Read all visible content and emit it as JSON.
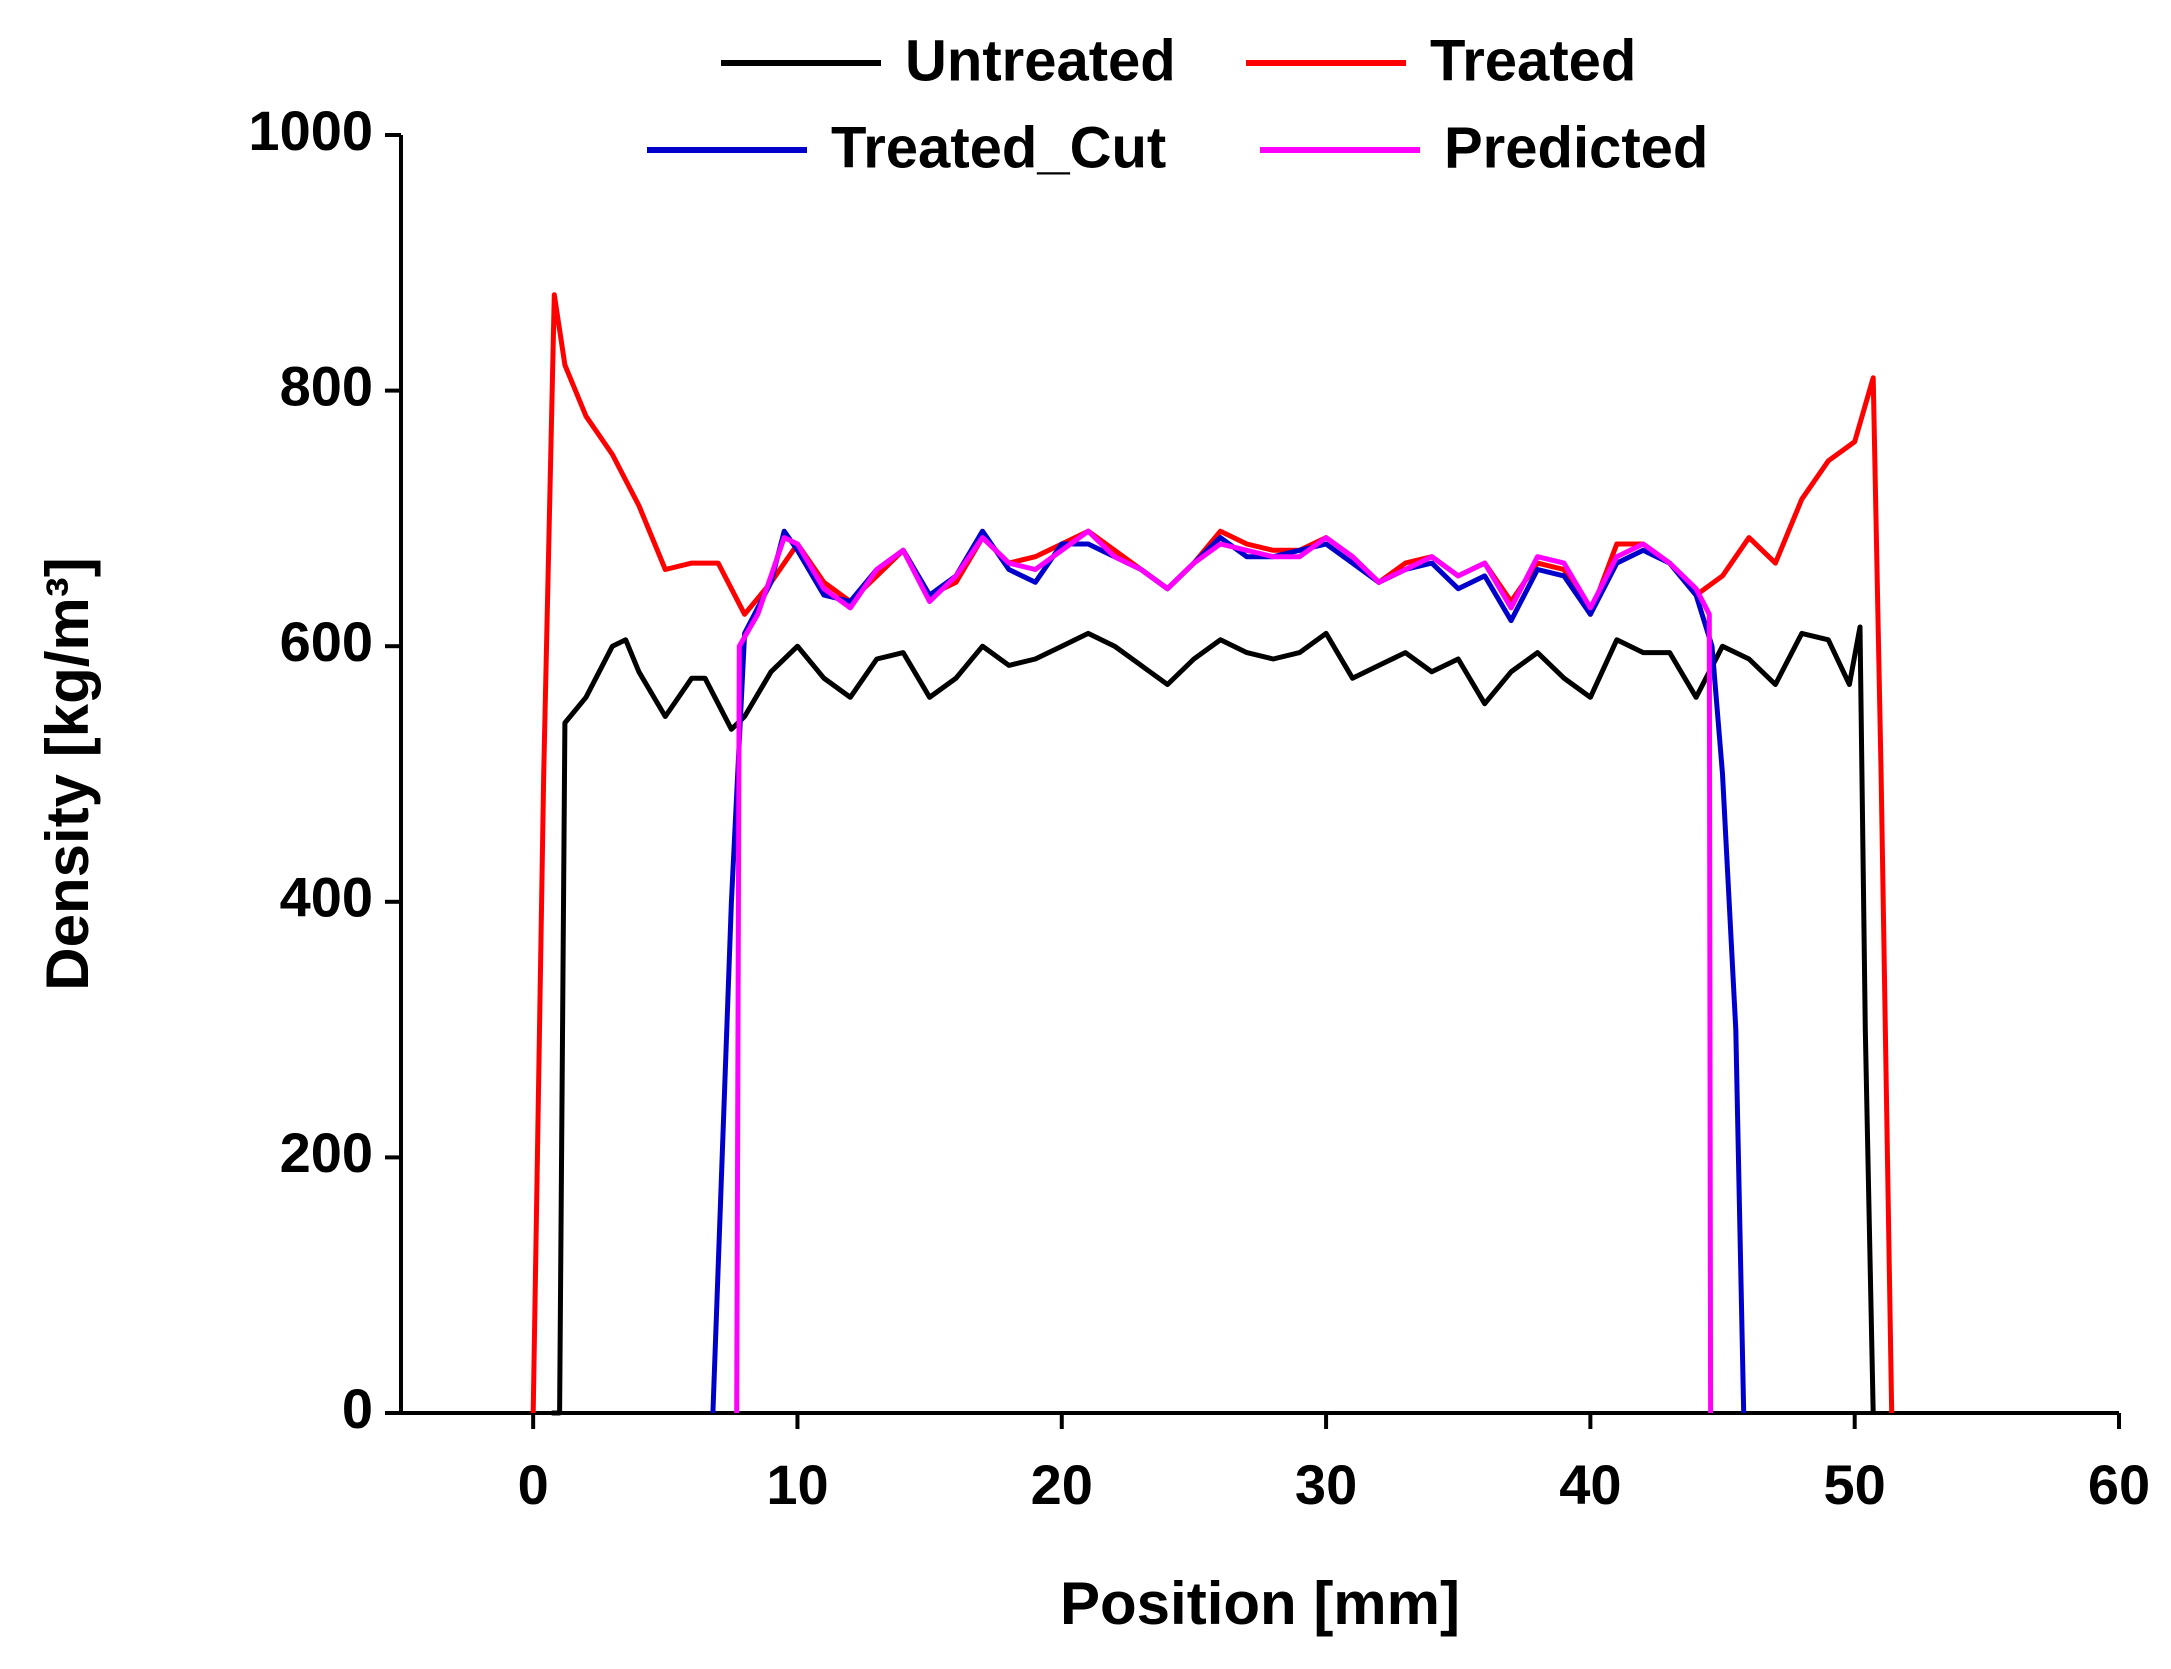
{
  "chart_data": {
    "type": "line",
    "xlabel": "Position [mm]",
    "ylabel": "Density [kg/m³]",
    "xlim": [
      -5,
      60
    ],
    "xticks": [
      0,
      10,
      20,
      30,
      40,
      50,
      60
    ],
    "ylim": [
      0,
      1000
    ],
    "yticks": [
      0,
      200,
      400,
      600,
      800,
      1000
    ],
    "series": [
      {
        "name": "Untreated",
        "color": "#000000",
        "x": [
          0.7,
          1.0,
          1.2,
          2,
          3,
          3.5,
          4,
          5,
          6,
          6.5,
          7.5,
          8,
          9,
          10,
          11,
          12,
          13,
          14,
          15,
          16,
          17,
          18,
          19,
          20,
          21,
          22,
          23,
          24,
          25,
          26,
          27,
          28,
          29,
          30,
          31,
          32,
          33,
          34,
          35,
          36,
          37,
          38,
          39,
          40,
          41,
          42,
          43,
          44,
          45,
          46,
          47,
          48,
          49,
          49.8,
          50.2,
          50.4,
          50.7
        ],
        "values": [
          0,
          0,
          540,
          560,
          600,
          605,
          580,
          545,
          575,
          575,
          535,
          545,
          580,
          600,
          575,
          560,
          590,
          595,
          560,
          575,
          600,
          585,
          590,
          600,
          610,
          600,
          585,
          570,
          590,
          605,
          595,
          590,
          595,
          610,
          575,
          585,
          595,
          580,
          590,
          555,
          580,
          595,
          575,
          560,
          605,
          595,
          595,
          560,
          600,
          590,
          570,
          610,
          605,
          570,
          615,
          300,
          0
        ]
      },
      {
        "name": "Treated",
        "color": "#ff0000",
        "x": [
          0,
          0.4,
          0.8,
          1.2,
          2,
          3,
          4,
          5,
          6,
          7,
          8,
          9,
          10,
          11,
          12,
          13,
          14,
          15,
          16,
          17,
          18,
          19,
          20,
          21,
          22,
          23,
          24,
          25,
          26,
          27,
          28,
          29,
          30,
          31,
          32,
          33,
          34,
          35,
          36,
          37,
          38,
          39,
          40,
          41,
          42,
          43,
          44,
          45,
          46,
          47,
          48,
          49,
          50,
          50.7,
          51,
          51.4
        ],
        "values": [
          0,
          500,
          875,
          820,
          780,
          750,
          710,
          660,
          665,
          665,
          625,
          650,
          680,
          650,
          635,
          655,
          675,
          640,
          650,
          685,
          665,
          670,
          680,
          690,
          675,
          660,
          645,
          665,
          690,
          680,
          675,
          675,
          685,
          670,
          650,
          665,
          670,
          655,
          665,
          635,
          665,
          660,
          625,
          680,
          680,
          665,
          640,
          655,
          685,
          665,
          715,
          745,
          760,
          810,
          500,
          0
        ]
      },
      {
        "name": "Treated_Cut",
        "color": "#0000cc",
        "x": [
          6.8,
          7.5,
          8,
          9,
          9.5,
          10,
          11,
          12,
          13,
          14,
          15,
          16,
          17,
          18,
          19,
          20,
          21,
          22,
          23,
          24,
          25,
          26,
          27,
          28,
          29,
          30,
          31,
          32,
          33,
          34,
          35,
          36,
          37,
          38,
          39,
          40,
          41,
          42,
          43,
          44,
          44.6,
          45,
          45.5,
          45.8
        ],
        "values": [
          0,
          400,
          610,
          650,
          690,
          675,
          640,
          635,
          660,
          675,
          640,
          655,
          690,
          660,
          650,
          680,
          680,
          670,
          660,
          645,
          665,
          685,
          670,
          670,
          675,
          680,
          665,
          650,
          660,
          665,
          645,
          655,
          620,
          660,
          655,
          625,
          665,
          675,
          665,
          640,
          600,
          500,
          300,
          0
        ]
      },
      {
        "name": "Predicted",
        "color": "#ff00ff",
        "x": [
          7.7,
          7.8,
          8.5,
          9.5,
          10,
          11,
          12,
          13,
          14,
          15,
          16,
          17,
          18,
          19,
          20,
          21,
          22,
          23,
          24,
          25,
          26,
          27,
          28,
          29,
          30,
          31,
          32,
          33,
          34,
          35,
          36,
          37,
          38,
          39,
          40,
          41,
          42,
          43,
          44,
          44.5,
          44.55
        ],
        "values": [
          0,
          600,
          625,
          685,
          680,
          645,
          630,
          660,
          675,
          635,
          655,
          685,
          665,
          660,
          675,
          690,
          670,
          660,
          645,
          665,
          680,
          675,
          670,
          670,
          685,
          670,
          650,
          660,
          670,
          655,
          665,
          630,
          670,
          665,
          630,
          670,
          680,
          665,
          645,
          625,
          0
        ]
      }
    ]
  }
}
